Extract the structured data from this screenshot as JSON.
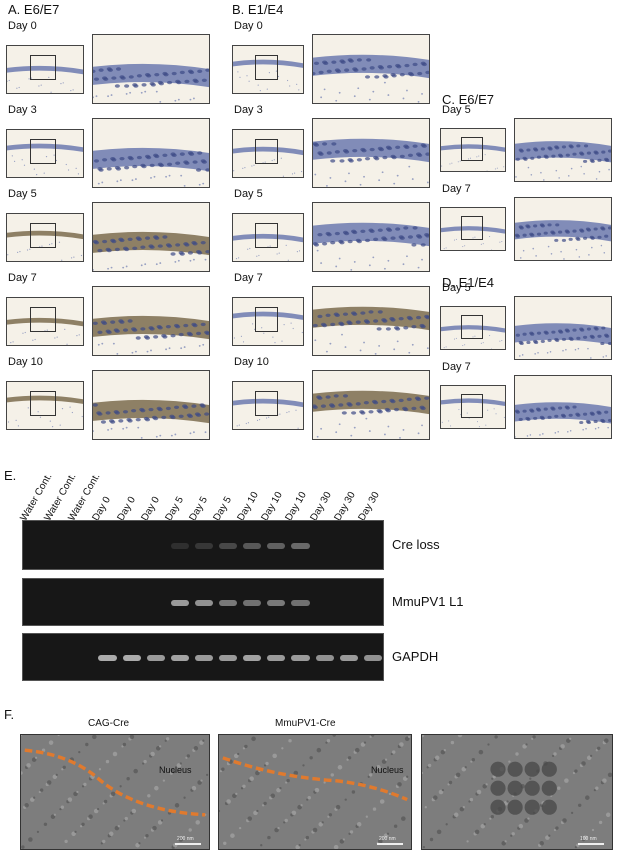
{
  "panels": {
    "A": {
      "label": "A.",
      "title": "E6/E7",
      "days": [
        "Day 0",
        "Day 3",
        "Day 5",
        "Day 7",
        "Day 10"
      ]
    },
    "B": {
      "label": "B.",
      "title": "E1/E4",
      "days": [
        "Day 0",
        "Day 3",
        "Day 5",
        "Day 7",
        "Day 10"
      ]
    },
    "C": {
      "label": "C.",
      "title": "E6/E7",
      "days": [
        "Day 5",
        "Day 7"
      ]
    },
    "D": {
      "label": "D.",
      "title": "E1/E4",
      "days": [
        "Day 5",
        "Day 7"
      ]
    }
  },
  "gel": {
    "label": "E.",
    "lanes": [
      "Water Cont.",
      "Water Cont.",
      "Water Cont.",
      "Day 0",
      "Day 0",
      "Day 0",
      "Day 5",
      "Day 5",
      "Day 5",
      "Day 10",
      "Day 10",
      "Day 10",
      "Day 30",
      "Day 30",
      "Day 30"
    ],
    "rows": [
      {
        "name": "Cre loss",
        "intensity": [
          0,
          0,
          0,
          0,
          0,
          0,
          0.15,
          0.2,
          0.3,
          0.4,
          0.45,
          0.5,
          0,
          0,
          0
        ]
      },
      {
        "name": "MmuPV1 L1",
        "intensity": [
          0,
          0,
          0,
          0,
          0,
          0,
          0.8,
          0.75,
          0.6,
          0.55,
          0.6,
          0.55,
          0,
          0,
          0
        ]
      },
      {
        "name": "GAPDH",
        "intensity": [
          0,
          0,
          0,
          0.9,
          0.9,
          0.8,
          0.85,
          0.8,
          0.8,
          0.85,
          0.8,
          0.8,
          0.75,
          0.8,
          0.75
        ]
      }
    ]
  },
  "em": {
    "label": "F.",
    "titles": [
      "CAG-Cre",
      "MmuPV1-Cre"
    ],
    "nucleus": "Nucleus",
    "scales": [
      "200 nm",
      "200 nm",
      "100 nm"
    ]
  },
  "colors": {
    "stain_blue": "#5a6aa8",
    "stain_brown": "#6b5a3a",
    "tissue_bg": "#f3efe6",
    "gel_bg": "#171717",
    "em_dash": "#e07a2e"
  }
}
